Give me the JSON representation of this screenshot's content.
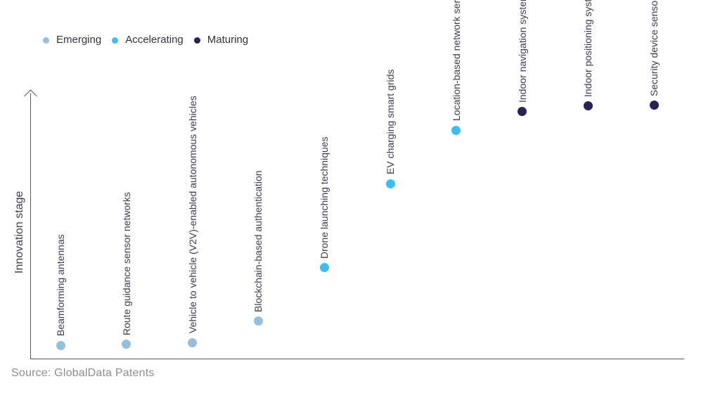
{
  "source": "Source: GlobalData Patents",
  "chart_data": {
    "type": "scatter",
    "title": "",
    "xlabel": "",
    "ylabel": "Innovation stage",
    "grid": false,
    "legend_position": "top-left",
    "y_axis": {
      "style": "arrow-no-ticks",
      "range": [
        0,
        1
      ],
      "ticks": []
    },
    "legend": [
      {
        "name": "Emerging",
        "color": "#93c0dc"
      },
      {
        "name": "Accelerating",
        "color": "#3dbdf2"
      },
      {
        "name": "Maturing",
        "color": "#2b2153"
      }
    ],
    "points": [
      {
        "label": "Beamforming antennas",
        "stage": "Emerging",
        "value": 0.05
      },
      {
        "label": "Route guidance sensor networks",
        "stage": "Emerging",
        "value": 0.053
      },
      {
        "label": "Vehicle to vehicle (V2V)-enabled autonomous vehicles",
        "stage": "Emerging",
        "value": 0.06
      },
      {
        "label": "Blockchain-based authentication",
        "stage": "Emerging",
        "value": 0.14
      },
      {
        "label": "Drone launching techniques",
        "stage": "Accelerating",
        "value": 0.34
      },
      {
        "label": "EV charging smart grids",
        "stage": "Accelerating",
        "value": 0.655
      },
      {
        "label": "Location-based network services",
        "stage": "Accelerating",
        "value": 0.855
      },
      {
        "label": "Indoor navigation systems",
        "stage": "Maturing",
        "value": 0.925
      },
      {
        "label": "Indoor positioning systems",
        "stage": "Maturing",
        "value": 0.945
      },
      {
        "label": "Security device sensor networks",
        "stage": "Maturing",
        "value": 0.948
      }
    ]
  }
}
